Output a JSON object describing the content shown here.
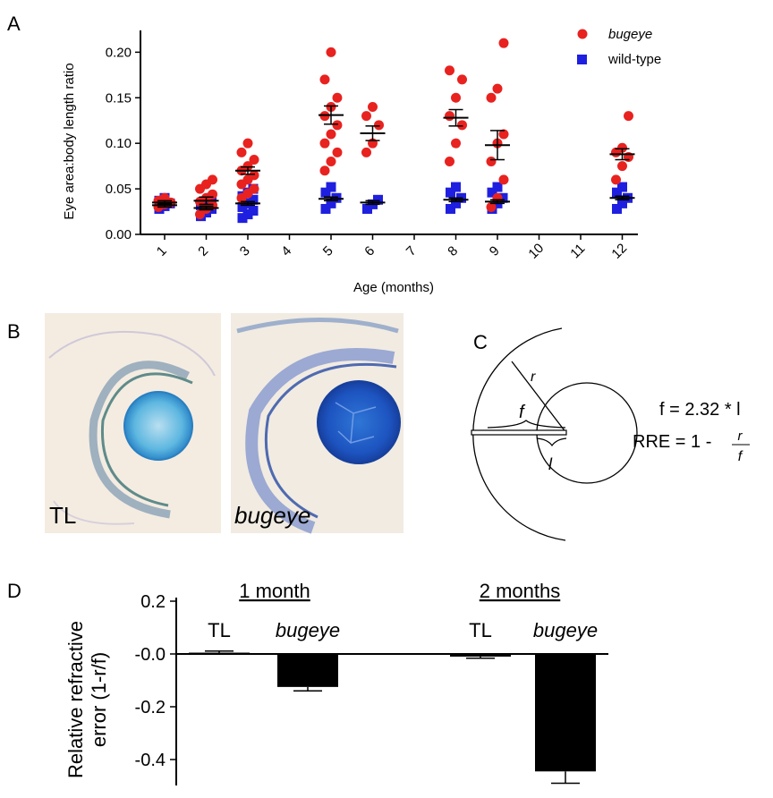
{
  "panels": {
    "A": "A",
    "B": "B",
    "C": "C",
    "D": "D"
  },
  "chart_data": [
    {
      "type": "scatter",
      "panel": "A",
      "xlabel": "Age (months)",
      "ylabel": "Eye area:body length ratio",
      "ylim": [
        0,
        0.22
      ],
      "yticks": [
        "0.00",
        "0.05",
        "0.10",
        "0.15",
        "0.20"
      ],
      "ytick_values": [
        0,
        0.05,
        0.1,
        0.15,
        0.2
      ],
      "categories": [
        "1",
        "2",
        "3",
        "4",
        "5",
        "6",
        "7",
        "8",
        "9",
        "10",
        "11",
        "12"
      ],
      "legend_position": "top-right",
      "colors": {
        "bugeye": "#e8221f",
        "wild-type": "#1f1fe0",
        "error": "#000000"
      },
      "series": [
        {
          "name": "bugeye",
          "marker": "circle",
          "points": [
            {
              "x": 1,
              "y": [
                0.03,
                0.033,
                0.035,
                0.037,
                0.04
              ]
            },
            {
              "x": 2,
              "y": [
                0.022,
                0.028,
                0.032,
                0.036,
                0.04,
                0.044,
                0.05,
                0.055,
                0.06
              ]
            },
            {
              "x": 3,
              "y": [
                0.04,
                0.045,
                0.05,
                0.055,
                0.06,
                0.065,
                0.07,
                0.075,
                0.082,
                0.09,
                0.1
              ]
            },
            {
              "x": 5,
              "y": [
                0.07,
                0.08,
                0.09,
                0.1,
                0.11,
                0.12,
                0.13,
                0.14,
                0.15,
                0.17,
                0.2
              ]
            },
            {
              "x": 6,
              "y": [
                0.09,
                0.1,
                0.12,
                0.13,
                0.14
              ]
            },
            {
              "x": 8,
              "y": [
                0.08,
                0.1,
                0.12,
                0.13,
                0.15,
                0.17,
                0.18
              ]
            },
            {
              "x": 9,
              "y": [
                0.03,
                0.04,
                0.06,
                0.08,
                0.1,
                0.11,
                0.15,
                0.16,
                0.21
              ]
            },
            {
              "x": 12,
              "y": [
                0.06,
                0.075,
                0.085,
                0.09,
                0.095,
                0.13
              ]
            }
          ],
          "means": [
            {
              "x": 1,
              "mean": 0.035,
              "sem": 0.002
            },
            {
              "x": 2,
              "mean": 0.037,
              "sem": 0.004
            },
            {
              "x": 3,
              "mean": 0.07,
              "sem": 0.004
            },
            {
              "x": 5,
              "mean": 0.131,
              "sem": 0.01
            },
            {
              "x": 6,
              "mean": 0.111,
              "sem": 0.008
            },
            {
              "x": 8,
              "mean": 0.128,
              "sem": 0.009
            },
            {
              "x": 9,
              "mean": 0.098,
              "sem": 0.016
            },
            {
              "x": 12,
              "mean": 0.088,
              "sem": 0.006
            }
          ]
        },
        {
          "name": "wild-type",
          "marker": "square",
          "points": [
            {
              "x": 1,
              "y": [
                0.028,
                0.031,
                0.034,
                0.037,
                0.04
              ]
            },
            {
              "x": 2,
              "y": [
                0.02,
                0.024,
                0.028,
                0.032,
                0.036,
                0.04
              ]
            },
            {
              "x": 3,
              "y": [
                0.018,
                0.022,
                0.026,
                0.03,
                0.034,
                0.038,
                0.042,
                0.046,
                0.05
              ]
            },
            {
              "x": 5,
              "y": [
                0.028,
                0.034,
                0.04,
                0.046,
                0.052
              ]
            },
            {
              "x": 6,
              "y": [
                0.028,
                0.033,
                0.038
              ]
            },
            {
              "x": 8,
              "y": [
                0.028,
                0.034,
                0.04,
                0.046,
                0.052
              ]
            },
            {
              "x": 9,
              "y": [
                0.028,
                0.034,
                0.04,
                0.046,
                0.052
              ]
            },
            {
              "x": 12,
              "y": [
                0.028,
                0.034,
                0.04,
                0.046,
                0.052
              ]
            }
          ],
          "means": [
            {
              "x": 1,
              "mean": 0.032,
              "sem": 0.002
            },
            {
              "x": 2,
              "mean": 0.029,
              "sem": 0.002
            },
            {
              "x": 3,
              "mean": 0.034,
              "sem": 0.002
            },
            {
              "x": 5,
              "mean": 0.039,
              "sem": 0.002
            },
            {
              "x": 6,
              "mean": 0.035,
              "sem": 0.002
            },
            {
              "x": 8,
              "mean": 0.038,
              "sem": 0.002
            },
            {
              "x": 9,
              "mean": 0.036,
              "sem": 0.002
            },
            {
              "x": 12,
              "mean": 0.04,
              "sem": 0.002
            }
          ]
        }
      ]
    },
    {
      "type": "bar",
      "panel": "D",
      "ylabel": "Relative refractive error (1-r/f)",
      "ylabel_lines": [
        "Relative refractive",
        "error (1-r/f)"
      ],
      "ylim": [
        -0.5,
        0.2
      ],
      "yticks": [
        "0.2",
        "-0.0",
        "-0.2",
        "-0.4"
      ],
      "ytick_values": [
        0.2,
        0.0,
        -0.2,
        -0.4
      ],
      "groups": [
        "1 month",
        "2 months"
      ],
      "bar_color": "#000000",
      "bars": [
        {
          "group": "1 month",
          "label": "TL",
          "value": 0.005,
          "err": 0.006,
          "italic": false
        },
        {
          "group": "1 month",
          "label": "bugeye",
          "value": -0.125,
          "err": 0.015,
          "italic": true
        },
        {
          "group": "2 months",
          "label": "TL",
          "value": -0.01,
          "err": 0.006,
          "italic": false
        },
        {
          "group": "2 months",
          "label": "bugeye",
          "value": -0.445,
          "err": 0.045,
          "italic": true
        }
      ]
    }
  ],
  "histology": {
    "left_label": "TL",
    "right_label": "bugeye"
  },
  "diagram": {
    "label_r": "r",
    "label_f": "f",
    "label_l": "l",
    "equation_1": "f = 2.32 * l",
    "equation_2_prefix": "RRE = 1 -",
    "frac_num": "r",
    "frac_den": "f"
  }
}
